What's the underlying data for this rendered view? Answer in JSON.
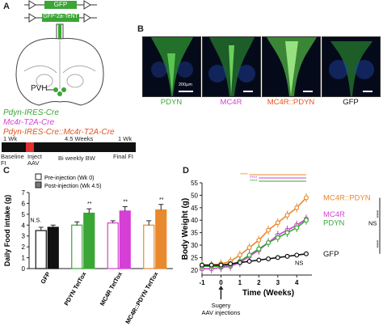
{
  "panels": {
    "a": "A",
    "b": "B",
    "c": "C",
    "d": "D"
  },
  "panel_a": {
    "construct_top": "GFP",
    "construct_bottom": "GFP-2a-TeNT",
    "region_label": "PVH",
    "genotypes": [
      {
        "label": "Pdyn-IRES-Cre",
        "color": "#3aa635"
      },
      {
        "label": "Mc4r-T2A-Cre",
        "color": "#d63fd6"
      },
      {
        "label": "Pdyn-IRES-Cre::Mc4r-T2A-Cre",
        "color": "#e2541f"
      }
    ],
    "timeline": {
      "segments": [
        "1 Wk",
        "4.5 Weeks",
        "1 Wk"
      ],
      "below": [
        "Baseline",
        "FI",
        "Inject",
        "AAV",
        "Bi weekly BW",
        "Final FI"
      ]
    }
  },
  "panel_b": {
    "images": [
      {
        "label": "PDYN",
        "color": "#3aa635"
      },
      {
        "label": "MC4R",
        "color": "#d63fd6"
      },
      {
        "label": "MC4R::PDYN",
        "color": "#e2541f"
      },
      {
        "label": "GFP",
        "color": "#111111"
      }
    ],
    "scale_text": "200µm"
  },
  "chart_data": [
    {
      "type": "bar",
      "ylabel": "Daily Food intake (g)",
      "ylim": [
        0,
        7
      ],
      "yticks": [
        "0",
        "1",
        "2",
        "3",
        "4",
        "5",
        "6",
        "7"
      ],
      "categories": [
        "GFP",
        "PDYN TetTox",
        "MC4R TetTox",
        "MC4R::PDYN TetTox"
      ],
      "series": [
        {
          "name": "Pre-injection (Wk 0)",
          "values": [
            3.5,
            4.0,
            4.2,
            4.0
          ],
          "errors": [
            0.3,
            0.3,
            0.2,
            0.4
          ]
        },
        {
          "name": "Post-injection (Wk 4.5)",
          "values": [
            3.8,
            5.1,
            5.3,
            5.4
          ],
          "errors": [
            0.2,
            0.4,
            0.4,
            0.5
          ]
        }
      ],
      "group_colors": [
        "#111111",
        "#3aa635",
        "#d63fd6",
        "#e8892e"
      ],
      "annotations": [
        "N.S.",
        "**",
        "**",
        "**"
      ]
    },
    {
      "type": "line",
      "xlabel": "Time (Weeks)",
      "ylabel": "Body Weight (g)",
      "xlim": [
        -1,
        4.8
      ],
      "ylim": [
        18,
        55
      ],
      "xticks": [
        "-1",
        "0",
        "1",
        "2",
        "3",
        "4"
      ],
      "yticks": [
        "20",
        "25",
        "30",
        "35",
        "40",
        "45",
        "50",
        "55"
      ],
      "x": [
        -1,
        -0.5,
        0,
        0.5,
        1,
        1.5,
        2,
        2.5,
        3,
        3.5,
        4,
        4.5
      ],
      "series": [
        {
          "name": "MC4R::PDYN",
          "color": "#e8892e",
          "values": [
            22,
            22,
            22.5,
            23.5,
            26,
            29,
            32,
            36,
            39,
            42,
            45,
            49
          ]
        },
        {
          "name": "MC4R",
          "color": "#d63fd6",
          "values": [
            20.5,
            20.5,
            21,
            21.5,
            23,
            25.5,
            28,
            31,
            34,
            36,
            38,
            40.5
          ]
        },
        {
          "name": "PDYN",
          "color": "#3aa635",
          "values": [
            21.5,
            21.5,
            21.5,
            22,
            23.5,
            26,
            28.5,
            31,
            33,
            35,
            37,
            40
          ]
        },
        {
          "name": "GFP",
          "color": "#111111",
          "values": [
            22,
            22,
            22,
            22.5,
            23,
            23.5,
            24,
            24.5,
            25,
            25.5,
            26,
            26.5
          ]
        }
      ],
      "significance": [
        "****",
        "****",
        "****",
        "****",
        "****",
        "NS",
        "NS"
      ],
      "arrow_label": [
        "Sugery",
        "AAV injections"
      ]
    }
  ]
}
